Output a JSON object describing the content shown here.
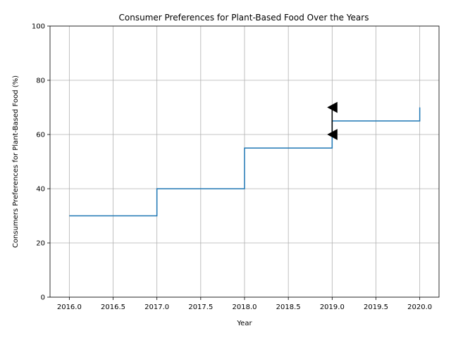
{
  "chart_data": {
    "type": "line",
    "drawstyle": "steps-post",
    "title": "Consumer Preferences for Plant-Based Food Over the Years",
    "xlabel": "Year",
    "ylabel": "Consumers Preferences for Plant-Based Food (%)",
    "x": [
      2016,
      2017,
      2018,
      2019,
      2020
    ],
    "series": [
      {
        "values": [
          30,
          40,
          55,
          65,
          70
        ],
        "color": "#1f77b4"
      }
    ],
    "xlim": [
      2015.78,
      2020.22
    ],
    "ylim": [
      0,
      100
    ],
    "xticks": [
      2016.0,
      2016.5,
      2017.0,
      2017.5,
      2018.0,
      2018.5,
      2019.0,
      2019.5,
      2020.0
    ],
    "xtick_labels": [
      "2016.0",
      "2016.5",
      "2017.0",
      "2017.5",
      "2018.0",
      "2018.5",
      "2019.0",
      "2019.5",
      "2020.0"
    ],
    "yticks": [
      0,
      20,
      40,
      60,
      80,
      100
    ],
    "ytick_labels": [
      "0",
      "20",
      "40",
      "60",
      "80",
      "100"
    ],
    "grid": true,
    "annotations": [
      {
        "type": "arrow",
        "text": "",
        "x": 2019,
        "y_from": 60,
        "y_to": 70
      }
    ]
  }
}
